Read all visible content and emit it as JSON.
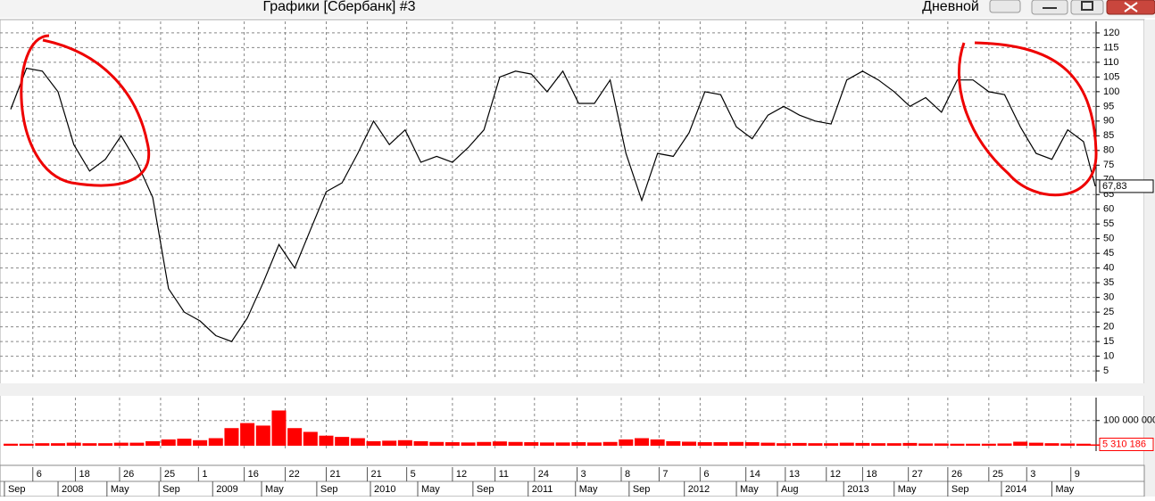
{
  "window": {
    "title": "Графики [Сбербанк] #3",
    "period": "Дневной"
  },
  "chart_data": [
    {
      "type": "line",
      "color": "#000000",
      "x": [
        2007.7,
        2007.8,
        2007.9,
        2008.0,
        2008.1,
        2008.2,
        2008.3,
        2008.4,
        2008.5,
        2008.6,
        2008.7,
        2008.8,
        2008.9,
        2009.0,
        2009.1,
        2009.2,
        2009.3,
        2009.4,
        2009.5,
        2009.6,
        2009.7,
        2009.8,
        2009.9,
        2010.0,
        2010.1,
        2010.2,
        2010.3,
        2010.4,
        2010.5,
        2010.6,
        2010.7,
        2010.8,
        2010.9,
        2011.0,
        2011.1,
        2011.2,
        2011.3,
        2011.4,
        2011.5,
        2011.6,
        2011.7,
        2011.8,
        2011.9,
        2012.0,
        2012.1,
        2012.2,
        2012.3,
        2012.4,
        2012.5,
        2012.6,
        2012.7,
        2012.8,
        2012.9,
        2013.0,
        2013.1,
        2013.2,
        2013.3,
        2013.4,
        2013.5,
        2013.6,
        2013.7,
        2013.8,
        2013.9,
        2014.0,
        2014.1,
        2014.2,
        2014.3,
        2014.4,
        2014.5,
        2014.575
      ],
      "values": [
        94,
        108,
        107,
        100,
        82,
        73,
        77,
        85,
        76,
        64,
        33,
        25,
        22,
        17,
        15,
        23,
        35,
        48,
        40,
        53,
        66,
        69,
        79,
        90,
        82,
        87,
        76,
        78,
        76,
        81,
        87,
        105,
        107,
        106,
        100,
        107,
        96,
        96,
        104,
        79,
        63,
        79,
        78,
        86,
        100,
        99,
        88,
        84,
        92,
        95,
        92,
        90,
        89,
        104,
        107,
        104,
        100,
        95,
        98,
        93,
        104,
        104,
        100,
        99,
        88,
        79,
        77,
        87,
        83,
        67.83
      ],
      "last": {
        "value": 67.83,
        "label": "67,83"
      },
      "xlim": [
        2007.632,
        2014.58
      ],
      "ylim": [
        3.2,
        122.1
      ],
      "yticks": [
        5,
        10,
        15,
        20,
        25,
        30,
        35,
        40,
        45,
        50,
        55,
        60,
        65,
        70,
        75,
        80,
        85,
        90,
        95,
        100,
        105,
        110,
        115,
        120
      ],
      "grid": true,
      "xticks_days": [
        {
          "value": 2007.84,
          "label": "6"
        },
        {
          "value": 2008.11,
          "label": "18"
        },
        {
          "value": 2008.39,
          "label": "26"
        },
        {
          "value": 2008.65,
          "label": "25"
        },
        {
          "value": 2008.89,
          "label": "1"
        },
        {
          "value": 2009.18,
          "label": "16"
        },
        {
          "value": 2009.44,
          "label": "22"
        },
        {
          "value": 2009.7,
          "label": "21"
        },
        {
          "value": 2009.96,
          "label": "21"
        },
        {
          "value": 2010.21,
          "label": "5"
        },
        {
          "value": 2010.5,
          "label": "12"
        },
        {
          "value": 2010.77,
          "label": "11"
        },
        {
          "value": 2011.02,
          "label": "24"
        },
        {
          "value": 2011.29,
          "label": "3"
        },
        {
          "value": 2011.57,
          "label": "8"
        },
        {
          "value": 2011.81,
          "label": "7"
        },
        {
          "value": 2012.07,
          "label": "6"
        },
        {
          "value": 2012.36,
          "label": "14"
        },
        {
          "value": 2012.61,
          "label": "13"
        },
        {
          "value": 2012.87,
          "label": "12"
        },
        {
          "value": 2013.1,
          "label": "18"
        },
        {
          "value": 2013.39,
          "label": "27"
        },
        {
          "value": 2013.64,
          "label": "26"
        },
        {
          "value": 2013.9,
          "label": "25"
        },
        {
          "value": 2014.14,
          "label": "3"
        },
        {
          "value": 2014.42,
          "label": "9"
        }
      ],
      "xticks": [
        {
          "value": 2007.66,
          "label": "Sep"
        },
        {
          "value": 2008.0,
          "label": "2008"
        },
        {
          "value": 2008.31,
          "label": "May"
        },
        {
          "value": 2008.64,
          "label": "Sep"
        },
        {
          "value": 2008.98,
          "label": "2009"
        },
        {
          "value": 2009.29,
          "label": "May"
        },
        {
          "value": 2009.64,
          "label": "Sep"
        },
        {
          "value": 2009.98,
          "label": "2010"
        },
        {
          "value": 2010.28,
          "label": "May"
        },
        {
          "value": 2010.63,
          "label": "Sep"
        },
        {
          "value": 2010.98,
          "label": "2011"
        },
        {
          "value": 2011.28,
          "label": "May"
        },
        {
          "value": 2011.62,
          "label": "Sep"
        },
        {
          "value": 2011.97,
          "label": "2012"
        },
        {
          "value": 2012.3,
          "label": "May"
        },
        {
          "value": 2012.56,
          "label": "Aug"
        },
        {
          "value": 2012.98,
          "label": "2013"
        },
        {
          "value": 2013.3,
          "label": "May"
        },
        {
          "value": 2013.64,
          "label": "Sep"
        },
        {
          "value": 2013.98,
          "label": "2014"
        },
        {
          "value": 2014.3,
          "label": "May"
        }
      ]
    },
    {
      "type": "bar",
      "color": "#ff0000",
      "x": [
        2007.7,
        2007.8,
        2007.9,
        2008.0,
        2008.1,
        2008.2,
        2008.3,
        2008.4,
        2008.5,
        2008.6,
        2008.7,
        2008.8,
        2008.9,
        2009.0,
        2009.1,
        2009.2,
        2009.3,
        2009.4,
        2009.5,
        2009.6,
        2009.7,
        2009.8,
        2009.9,
        2010.0,
        2010.1,
        2010.2,
        2010.3,
        2010.4,
        2010.5,
        2010.6,
        2010.7,
        2010.8,
        2010.9,
        2011.0,
        2011.1,
        2011.2,
        2011.3,
        2011.4,
        2011.5,
        2011.6,
        2011.7,
        2011.8,
        2011.9,
        2012.0,
        2012.1,
        2012.2,
        2012.3,
        2012.4,
        2012.5,
        2012.6,
        2012.7,
        2012.8,
        2012.9,
        2013.0,
        2013.1,
        2013.2,
        2013.3,
        2013.4,
        2013.5,
        2013.6,
        2013.7,
        2013.8,
        2013.9,
        2014.0,
        2014.1,
        2014.2,
        2014.3,
        2014.4,
        2014.5,
        2014.575
      ],
      "values": [
        8000000,
        8000000,
        10000000,
        10000000,
        12000000,
        10000000,
        10000000,
        12000000,
        12000000,
        18000000,
        25000000,
        28000000,
        22000000,
        30000000,
        70000000,
        90000000,
        80000000,
        140000000,
        70000000,
        55000000,
        40000000,
        35000000,
        30000000,
        18000000,
        20000000,
        22000000,
        18000000,
        15000000,
        14000000,
        13000000,
        15000000,
        17000000,
        15000000,
        14000000,
        13000000,
        13000000,
        14000000,
        13000000,
        15000000,
        25000000,
        30000000,
        25000000,
        18000000,
        16000000,
        14000000,
        14000000,
        15000000,
        14000000,
        12000000,
        10000000,
        11000000,
        10000000,
        10000000,
        12000000,
        11000000,
        10000000,
        10000000,
        11000000,
        9000000,
        9000000,
        8000000,
        8000000,
        8000000,
        9000000,
        16000000,
        12000000,
        10000000,
        9000000,
        8000000,
        5310186
      ],
      "last": {
        "value": 5310186,
        "label": "5 310 186"
      },
      "xlim": [
        2007.632,
        2014.58
      ],
      "ylim": [
        0,
        170000000
      ],
      "yticks": [
        {
          "value": 100000000,
          "label": "100 000 000"
        }
      ],
      "grid": true
    }
  ]
}
